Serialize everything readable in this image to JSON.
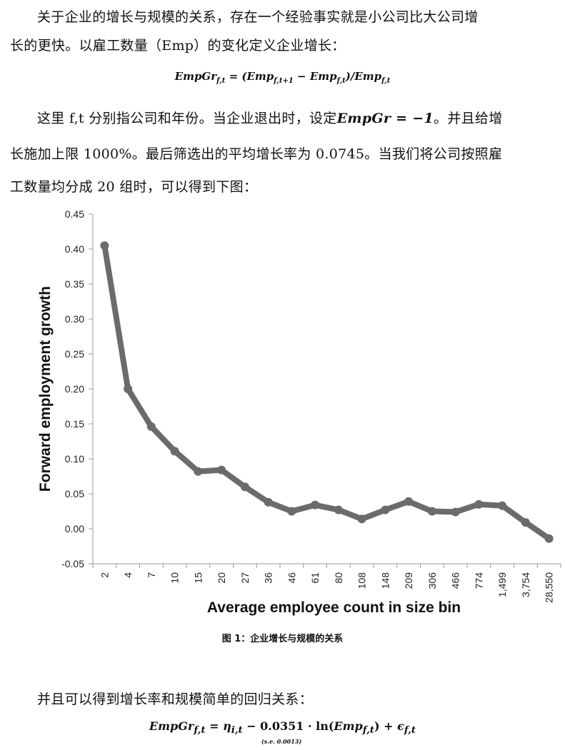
{
  "text": {
    "p1_line1": "关于企业的增长与规模的关系，存在一个经验事实就是小公司比大公司增",
    "p1_line2": "长的更快。以雇工数量（Emp）的变化定义企业增长：",
    "eq1": {
      "lhs": "EmpGr",
      "lhs_sub": "f,t",
      "eq": " = (",
      "t1": "Emp",
      "t1_sub": "f,t+1",
      "minus": " − ",
      "t2": "Emp",
      "t2_sub": "f,t",
      "close": ")/",
      "t3": "Emp",
      "t3_sub": "f,t"
    },
    "p2_line1_a": "这里 f,t 分别指公司和年份。当企业退出时，设定",
    "p2_math": "EmpGr = −1",
    "p2_line1_b": "。并且给增",
    "p2_line2": "长施加上限 1000%。最后筛选出的平均增长率为 0.0745。当我们将公司按照雇",
    "p2_line3": "工数量均分成 20 组时，可以得到下图：",
    "caption": "图 1：企业增长与规模的关系",
    "p3": "并且可以得到增长率和规模简单的回归关系：",
    "eq2": {
      "lhs": "EmpGr",
      "lhs_sub": "f,t",
      "eq": " = ",
      "eta": "η",
      "eta_sub": "i,t",
      "minus": " − ",
      "coef": "0.0351",
      "dot": " · ln(",
      "emp": "Emp",
      "emp_sub": "f,t",
      "plus": ") + ",
      "eps": "ϵ",
      "eps_sub": "f,t",
      "se": "(s.e. 0.0013)"
    }
  },
  "chart_data": {
    "type": "line",
    "xlabel": "Average employee count in size bin",
    "ylabel": "Forward employment growth",
    "categories": [
      "2",
      "4",
      "7",
      "10",
      "15",
      "20",
      "27",
      "36",
      "46",
      "61",
      "80",
      "108",
      "148",
      "209",
      "306",
      "466",
      "774",
      "1,499",
      "3,754",
      "28,550"
    ],
    "values": [
      0.405,
      0.2,
      0.146,
      0.111,
      0.082,
      0.084,
      0.06,
      0.038,
      0.025,
      0.034,
      0.027,
      0.014,
      0.027,
      0.039,
      0.025,
      0.024,
      0.035,
      0.033,
      0.009,
      -0.014
    ],
    "ylim": [
      -0.05,
      0.45
    ],
    "yticks": [
      "-0.05",
      "0.00",
      "0.05",
      "0.10",
      "0.15",
      "0.20",
      "0.25",
      "0.30",
      "0.35",
      "0.40",
      "0.45"
    ],
    "grid": false,
    "line_color": "#6b6b6b"
  }
}
